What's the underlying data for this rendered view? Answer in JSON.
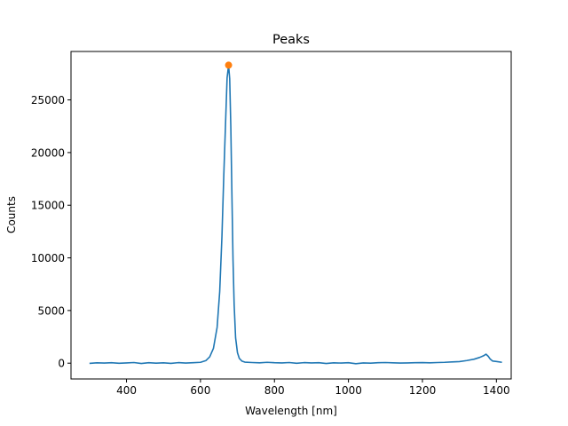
{
  "chart_data": {
    "type": "line",
    "title": "Peaks",
    "xlabel": "Wavelength [nm]",
    "ylabel": "Counts",
    "xlim": [
      250,
      1440
    ],
    "ylim": [
      -1500,
      29600
    ],
    "xticks": [
      400,
      600,
      800,
      1000,
      1200,
      1400
    ],
    "yticks": [
      0,
      5000,
      10000,
      15000,
      20000,
      25000
    ],
    "grid": false,
    "series": [
      {
        "color": "#1f77b4",
        "x": [
          300,
          320,
          340,
          360,
          380,
          400,
          420,
          440,
          460,
          480,
          500,
          520,
          540,
          560,
          580,
          600,
          615,
          625,
          635,
          645,
          652,
          658,
          663,
          668,
          672,
          676,
          679,
          682,
          685,
          688,
          691,
          695,
          700,
          705,
          712,
          720,
          740,
          760,
          780,
          800,
          820,
          840,
          860,
          880,
          900,
          920,
          940,
          960,
          980,
          1000,
          1020,
          1040,
          1060,
          1080,
          1100,
          1120,
          1140,
          1160,
          1180,
          1200,
          1220,
          1240,
          1260,
          1280,
          1300,
          1320,
          1340,
          1355,
          1365,
          1372,
          1378,
          1383,
          1390,
          1400,
          1415
        ],
        "values": [
          -20,
          30,
          10,
          40,
          -10,
          20,
          60,
          -30,
          40,
          0,
          30,
          -20,
          50,
          10,
          40,
          80,
          250,
          600,
          1400,
          3400,
          6800,
          12000,
          17800,
          23000,
          27100,
          28300,
          27000,
          22500,
          16000,
          9800,
          5600,
          2400,
          1000,
          450,
          200,
          100,
          60,
          30,
          80,
          40,
          20,
          60,
          -10,
          50,
          20,
          40,
          -30,
          30,
          10,
          40,
          -50,
          20,
          0,
          40,
          60,
          30,
          10,
          20,
          40,
          50,
          30,
          60,
          80,
          120,
          150,
          250,
          380,
          550,
          700,
          850,
          650,
          400,
          200,
          160,
          80
        ]
      }
    ],
    "markers": [
      {
        "x": 676,
        "y": 28300,
        "color": "#ff7f0e"
      }
    ]
  }
}
